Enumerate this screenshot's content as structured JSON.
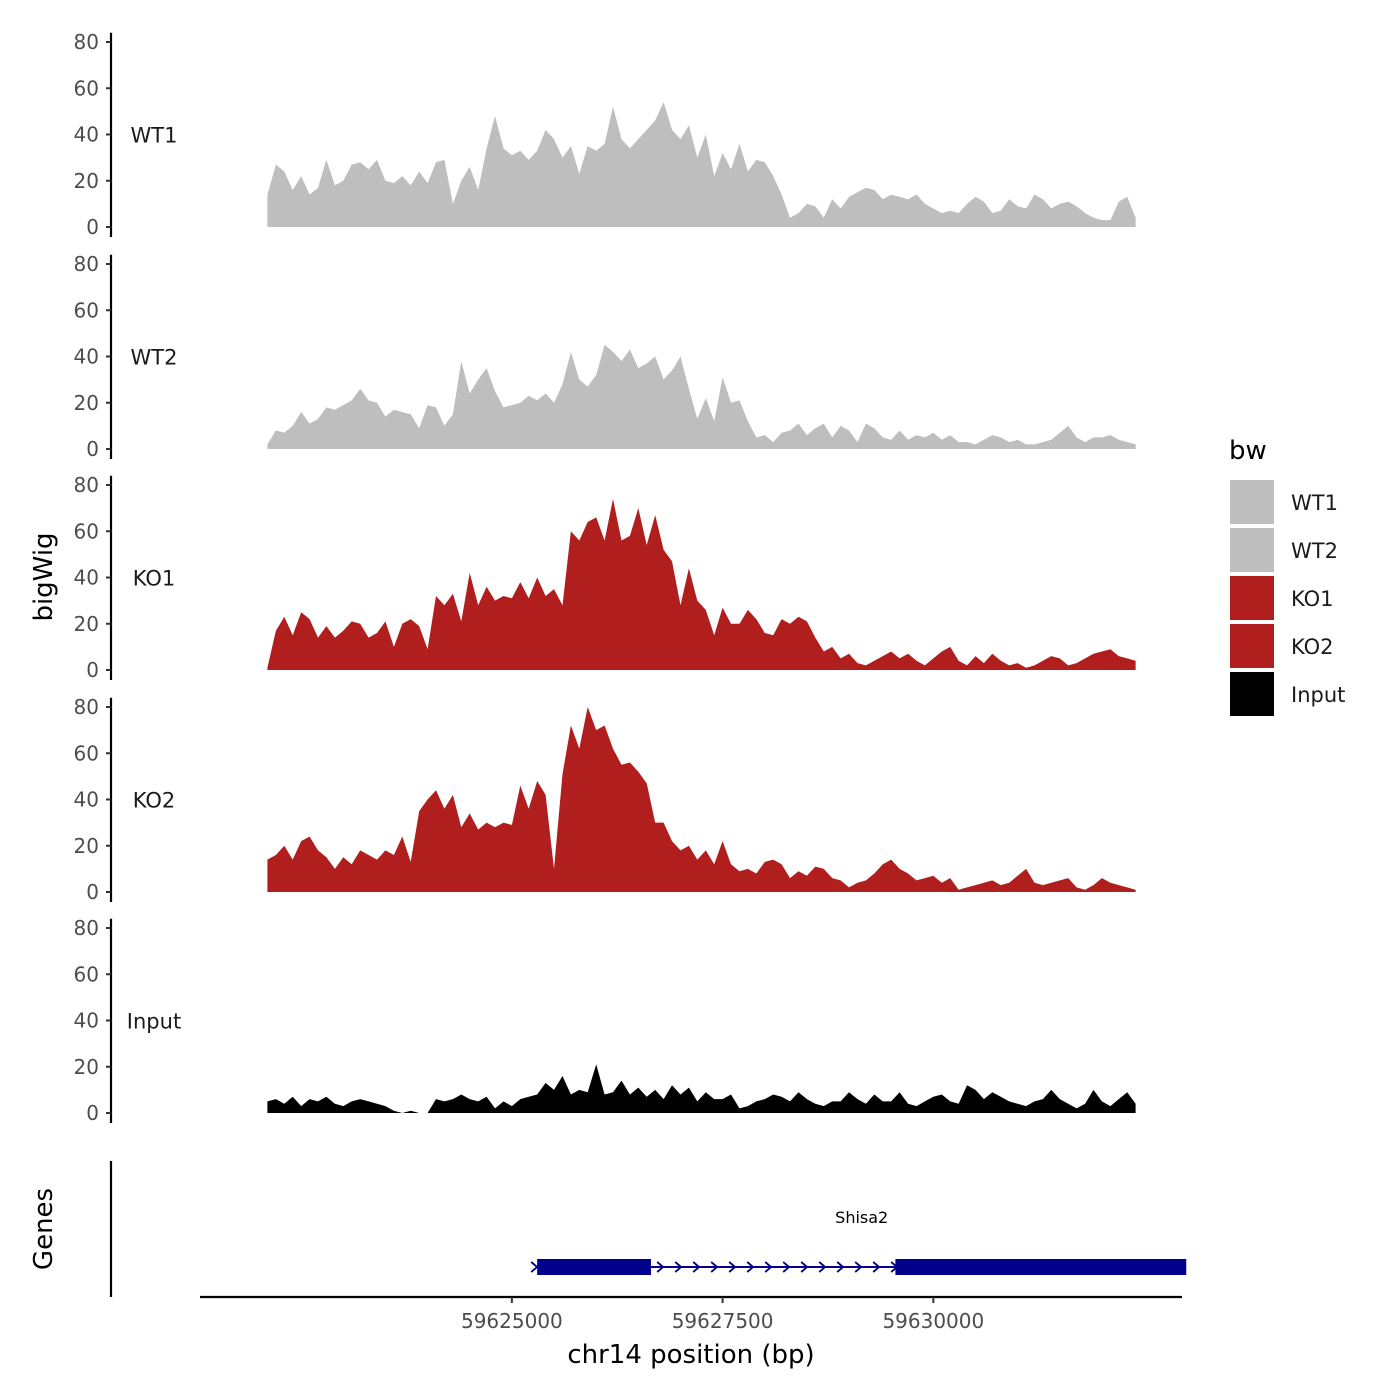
{
  "chart_data": {
    "type": "area",
    "xlabel": "chr14 position (bp)",
    "ylabel": "bigWig",
    "genes_label": "Genes",
    "legend_title": "bw",
    "y_ticks": [
      0,
      20,
      40,
      60,
      80
    ],
    "x_ticks": [
      59625000,
      59627500,
      59630000
    ],
    "x_tick_labels": [
      "59625000",
      "59627500",
      "59630000"
    ],
    "xlim": [
      59621300,
      59632950
    ],
    "ylim": [
      0,
      84
    ],
    "series": [
      {
        "name": "WT1",
        "color": "#bebebe",
        "x": [
          59622100,
          59622200,
          59622300,
          59622400,
          59622500,
          59622600,
          59622700,
          59622800,
          59622900,
          59623000,
          59623100,
          59623200,
          59623300,
          59623400,
          59623500,
          59623600,
          59623700,
          59623800,
          59623900,
          59624000,
          59624100,
          59624200,
          59624300,
          59624400,
          59624500,
          59624600,
          59624700,
          59624800,
          59624900,
          59625000,
          59625100,
          59625200,
          59625300,
          59625400,
          59625500,
          59625600,
          59625700,
          59625800,
          59625900,
          59626000,
          59626100,
          59626200,
          59626300,
          59626400,
          59626500,
          59626600,
          59626700,
          59626800,
          59626900,
          59627000,
          59627100,
          59627200,
          59627300,
          59627400,
          59627500,
          59627600,
          59627700,
          59627800,
          59627900,
          59628000,
          59628100,
          59628200,
          59628300,
          59628400,
          59628500,
          59628600,
          59628700,
          59628800,
          59628900,
          59629000,
          59629100,
          59629200,
          59629300,
          59629400,
          59629500,
          59629600,
          59629700,
          59629800,
          59629900,
          59630000,
          59630100,
          59630200,
          59630300,
          59630400,
          59630500,
          59630600,
          59630700,
          59630800,
          59630900,
          59631000,
          59631100,
          59631200,
          59631300,
          59631400,
          59631500,
          59631600,
          59631700,
          59631800,
          59631900,
          59632000,
          59632100,
          59632200,
          59632300,
          59632400
        ],
        "values": [
          14,
          27,
          24,
          16,
          22,
          14,
          17,
          29,
          18,
          20,
          27,
          28,
          25,
          29,
          20,
          19,
          22,
          18,
          24,
          19,
          28,
          29,
          10,
          20,
          26,
          16,
          34,
          48,
          34,
          31,
          33,
          29,
          33,
          42,
          38,
          30,
          35,
          23,
          35,
          33,
          36,
          52,
          38,
          34,
          38,
          42,
          46,
          54,
          42,
          38,
          44,
          30,
          40,
          22,
          32,
          25,
          36,
          24,
          29,
          28,
          22,
          14,
          4,
          6,
          10,
          9,
          4,
          12,
          8,
          13,
          15,
          17,
          16,
          12,
          14,
          13,
          12,
          14,
          10,
          8,
          6,
          7,
          6,
          10,
          13,
          11,
          6,
          7,
          12,
          9,
          8,
          14,
          12,
          8,
          10,
          11,
          9,
          6,
          4,
          3,
          3,
          11,
          13,
          4
        ]
      },
      {
        "name": "WT2",
        "color": "#bebebe",
        "x": [
          59622100,
          59622200,
          59622300,
          59622400,
          59622500,
          59622600,
          59622700,
          59622800,
          59622900,
          59623000,
          59623100,
          59623200,
          59623300,
          59623400,
          59623500,
          59623600,
          59623700,
          59623800,
          59623900,
          59624000,
          59624100,
          59624200,
          59624300,
          59624400,
          59624500,
          59624600,
          59624700,
          59624800,
          59624900,
          59625000,
          59625100,
          59625200,
          59625300,
          59625400,
          59625500,
          59625600,
          59625700,
          59625800,
          59625900,
          59626000,
          59626100,
          59626200,
          59626300,
          59626400,
          59626500,
          59626600,
          59626700,
          59626800,
          59626900,
          59627000,
          59627100,
          59627200,
          59627300,
          59627400,
          59627500,
          59627600,
          59627700,
          59627800,
          59627900,
          59628000,
          59628100,
          59628200,
          59628300,
          59628400,
          59628500,
          59628600,
          59628700,
          59628800,
          59628900,
          59629000,
          59629100,
          59629200,
          59629300,
          59629400,
          59629500,
          59629600,
          59629700,
          59629800,
          59629900,
          59630000,
          59630100,
          59630200,
          59630300,
          59630400,
          59630500,
          59630600,
          59630700,
          59630800,
          59630900,
          59631000,
          59631100,
          59631200,
          59631300,
          59631400,
          59631500,
          59631600,
          59631700,
          59631800,
          59631900,
          59632000,
          59632100,
          59632200,
          59632300,
          59632400
        ],
        "values": [
          2,
          8,
          7,
          10,
          16,
          11,
          13,
          18,
          17,
          19,
          21,
          26,
          21,
          20,
          14,
          17,
          16,
          15,
          9,
          19,
          18,
          10,
          15,
          38,
          24,
          30,
          35,
          25,
          18,
          19,
          20,
          23,
          21,
          24,
          20,
          28,
          42,
          30,
          27,
          32,
          45,
          42,
          38,
          43,
          35,
          37,
          40,
          30,
          34,
          40,
          26,
          13,
          22,
          12,
          31,
          20,
          21,
          12,
          5,
          6,
          3,
          7,
          8,
          11,
          6,
          9,
          11,
          5,
          10,
          8,
          3,
          11,
          9,
          5,
          4,
          8,
          4,
          6,
          5,
          7,
          4,
          6,
          3,
          3,
          2,
          4,
          6,
          5,
          3,
          4,
          2,
          2,
          3,
          4,
          7,
          10,
          5,
          3,
          5,
          5,
          6,
          4,
          3,
          2
        ]
      },
      {
        "name": "KO1",
        "color": "#b01e1e",
        "x": [
          59622100,
          59622200,
          59622300,
          59622400,
          59622500,
          59622600,
          59622700,
          59622800,
          59622900,
          59623000,
          59623100,
          59623200,
          59623300,
          59623400,
          59623500,
          59623600,
          59623700,
          59623800,
          59623900,
          59624000,
          59624100,
          59624200,
          59624300,
          59624400,
          59624500,
          59624600,
          59624700,
          59624800,
          59624900,
          59625000,
          59625100,
          59625200,
          59625300,
          59625400,
          59625500,
          59625600,
          59625700,
          59625800,
          59625900,
          59626000,
          59626100,
          59626200,
          59626300,
          59626400,
          59626500,
          59626600,
          59626700,
          59626800,
          59626900,
          59627000,
          59627100,
          59627200,
          59627300,
          59627400,
          59627500,
          59627600,
          59627700,
          59627800,
          59627900,
          59628000,
          59628100,
          59628200,
          59628300,
          59628400,
          59628500,
          59628600,
          59628700,
          59628800,
          59628900,
          59629000,
          59629100,
          59629200,
          59629300,
          59629400,
          59629500,
          59629600,
          59629700,
          59629800,
          59629900,
          59630000,
          59630100,
          59630200,
          59630300,
          59630400,
          59630500,
          59630600,
          59630700,
          59630800,
          59630900,
          59631000,
          59631100,
          59631200,
          59631300,
          59631400,
          59631500,
          59631600,
          59631700,
          59631800,
          59631900,
          59632000,
          59632100,
          59632200,
          59632300,
          59632400
        ],
        "values": [
          1,
          17,
          23,
          15,
          25,
          22,
          14,
          19,
          14,
          17,
          21,
          20,
          14,
          16,
          21,
          10,
          20,
          22,
          19,
          9,
          32,
          28,
          33,
          21,
          42,
          28,
          36,
          30,
          32,
          31,
          38,
          31,
          40,
          32,
          35,
          28,
          60,
          56,
          64,
          66,
          56,
          74,
          56,
          58,
          70,
          54,
          67,
          52,
          47,
          28,
          44,
          30,
          26,
          15,
          27,
          20,
          20,
          26,
          22,
          16,
          15,
          22,
          20,
          23,
          21,
          14,
          8,
          10,
          5,
          7,
          3,
          2,
          4,
          6,
          8,
          5,
          7,
          4,
          2,
          5,
          8,
          10,
          4,
          2,
          6,
          3,
          7,
          4,
          2,
          3,
          1,
          2,
          4,
          6,
          5,
          2,
          3,
          5,
          7,
          8,
          9,
          6,
          5,
          4
        ]
      },
      {
        "name": "KO2",
        "color": "#b01e1e",
        "x": [
          59622100,
          59622200,
          59622300,
          59622400,
          59622500,
          59622600,
          59622700,
          59622800,
          59622900,
          59623000,
          59623100,
          59623200,
          59623300,
          59623400,
          59623500,
          59623600,
          59623700,
          59623800,
          59623900,
          59624000,
          59624100,
          59624200,
          59624300,
          59624400,
          59624500,
          59624600,
          59624700,
          59624800,
          59624900,
          59625000,
          59625100,
          59625200,
          59625300,
          59625400,
          59625500,
          59625600,
          59625700,
          59625800,
          59625900,
          59626000,
          59626100,
          59626200,
          59626300,
          59626400,
          59626500,
          59626600,
          59626700,
          59626800,
          59626900,
          59627000,
          59627100,
          59627200,
          59627300,
          59627400,
          59627500,
          59627600,
          59627700,
          59627800,
          59627900,
          59628000,
          59628100,
          59628200,
          59628300,
          59628400,
          59628500,
          59628600,
          59628700,
          59628800,
          59628900,
          59629000,
          59629100,
          59629200,
          59629300,
          59629400,
          59629500,
          59629600,
          59629700,
          59629800,
          59629900,
          59630000,
          59630100,
          59630200,
          59630300,
          59630400,
          59630500,
          59630600,
          59630700,
          59630800,
          59630900,
          59631000,
          59631100,
          59631200,
          59631300,
          59631400,
          59631500,
          59631600,
          59631700,
          59631800,
          59631900,
          59632000,
          59632100,
          59632200,
          59632300,
          59632400
        ],
        "values": [
          14,
          16,
          20,
          14,
          22,
          24,
          18,
          15,
          10,
          15,
          12,
          18,
          16,
          14,
          18,
          16,
          24,
          13,
          35,
          40,
          44,
          36,
          42,
          28,
          34,
          27,
          30,
          28,
          30,
          29,
          46,
          36,
          48,
          42,
          10,
          51,
          72,
          62,
          80,
          70,
          72,
          62,
          55,
          56,
          52,
          47,
          30,
          30,
          22,
          18,
          20,
          14,
          18,
          12,
          22,
          12,
          9,
          10,
          8,
          13,
          14,
          12,
          6,
          9,
          7,
          11,
          10,
          6,
          5,
          2,
          4,
          5,
          8,
          12,
          14,
          10,
          8,
          5,
          6,
          7,
          4,
          6,
          1,
          2,
          3,
          4,
          5,
          3,
          4,
          7,
          10,
          4,
          3,
          4,
          5,
          6,
          2,
          1,
          3,
          6,
          4,
          3,
          2,
          1
        ]
      },
      {
        "name": "Input",
        "color": "#000000",
        "x": [
          59622100,
          59622200,
          59622300,
          59622400,
          59622500,
          59622600,
          59622700,
          59622800,
          59622900,
          59623000,
          59623100,
          59623200,
          59623300,
          59623400,
          59623500,
          59623600,
          59623700,
          59623800,
          59623900,
          59624000,
          59624100,
          59624200,
          59624300,
          59624400,
          59624500,
          59624600,
          59624700,
          59624800,
          59624900,
          59625000,
          59625100,
          59625200,
          59625300,
          59625400,
          59625500,
          59625600,
          59625700,
          59625800,
          59625900,
          59626000,
          59626100,
          59626200,
          59626300,
          59626400,
          59626500,
          59626600,
          59626700,
          59626800,
          59626900,
          59627000,
          59627100,
          59627200,
          59627300,
          59627400,
          59627500,
          59627600,
          59627700,
          59627800,
          59627900,
          59628000,
          59628100,
          59628200,
          59628300,
          59628400,
          59628500,
          59628600,
          59628700,
          59628800,
          59628900,
          59629000,
          59629100,
          59629200,
          59629300,
          59629400,
          59629500,
          59629600,
          59629700,
          59629800,
          59629900,
          59630000,
          59630100,
          59630200,
          59630300,
          59630400,
          59630500,
          59630600,
          59630700,
          59630800,
          59630900,
          59631000,
          59631100,
          59631200,
          59631300,
          59631400,
          59631500,
          59631600,
          59631700,
          59631800,
          59631900,
          59632000,
          59632100,
          59632200,
          59632300,
          59632400
        ],
        "values": [
          5,
          6,
          4,
          7,
          3,
          6,
          5,
          7,
          4,
          3,
          5,
          6,
          5,
          4,
          3,
          1,
          0,
          1,
          0,
          0,
          6,
          5,
          6,
          8,
          6,
          5,
          7,
          2,
          5,
          3,
          6,
          7,
          8,
          13,
          10,
          16,
          8,
          10,
          9,
          21,
          8,
          9,
          14,
          8,
          11,
          7,
          10,
          6,
          12,
          8,
          11,
          5,
          9,
          6,
          6,
          8,
          2,
          3,
          5,
          6,
          8,
          7,
          5,
          9,
          6,
          4,
          3,
          5,
          5,
          9,
          6,
          4,
          8,
          5,
          5,
          9,
          4,
          3,
          5,
          7,
          8,
          5,
          4,
          12,
          10,
          6,
          9,
          7,
          5,
          4,
          3,
          5,
          6,
          10,
          6,
          4,
          2,
          4,
          10,
          5,
          3,
          6,
          9,
          4
        ]
      }
    ],
    "gene": {
      "name": "Shisa2",
      "strand": "+",
      "start": 59625300,
      "end": 59633000,
      "exons": [
        [
          59625300,
          59626650
        ],
        [
          59629550,
          59633000
        ]
      ],
      "color": "#00008b"
    },
    "legend": [
      {
        "label": "WT1",
        "color": "#bebebe"
      },
      {
        "label": "WT2",
        "color": "#bebebe"
      },
      {
        "label": "KO1",
        "color": "#b01e1e"
      },
      {
        "label": "KO2",
        "color": "#b01e1e"
      },
      {
        "label": "Input",
        "color": "#000000"
      }
    ]
  }
}
